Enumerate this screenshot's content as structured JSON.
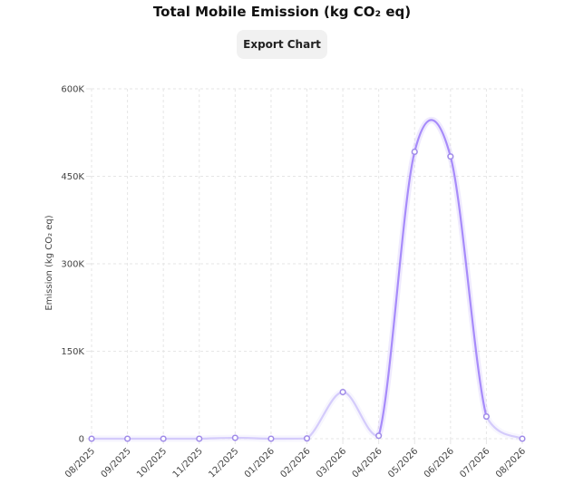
{
  "header": {
    "title": "Total Mobile Emission (kg CO₂ eq)",
    "export_label": "Export Chart"
  },
  "chart_data": {
    "type": "line",
    "title": "Total Mobile Emission (kg CO₂ eq)",
    "xlabel": "",
    "ylabel": "Emission (kg CO₂ eq)",
    "categories": [
      "08/2025",
      "09/2025",
      "10/2025",
      "11/2025",
      "12/2025",
      "01/2026",
      "02/2026",
      "03/2026",
      "04/2026",
      "05/2026",
      "06/2026",
      "07/2026",
      "08/2026"
    ],
    "series": [
      {
        "values": [
          0,
          0,
          0,
          0,
          1500,
          0,
          500,
          80000,
          5000,
          492000,
          484000,
          38000,
          0
        ]
      }
    ],
    "ylim": [
      0,
      600000
    ],
    "yticks": [
      0,
      150000,
      300000,
      450000,
      600000
    ],
    "ytick_labels": [
      "0",
      "150K",
      "300K",
      "450K",
      "600K"
    ],
    "grid": true,
    "line_color": "#a78bfa",
    "line_color_light": "#d4cbfb"
  }
}
